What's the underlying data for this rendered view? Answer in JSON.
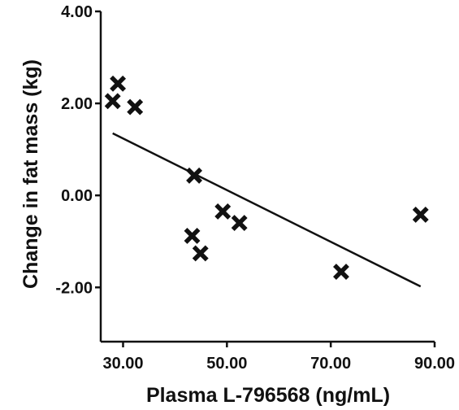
{
  "chart_data": {
    "type": "scatter",
    "title": "",
    "xlabel": "Plasma L-796568 (ng/mL)",
    "ylabel": "Change in fat mass (kg)",
    "xlim": [
      25.7,
      90.0
    ],
    "ylim": [
      -3.18,
      4.0
    ],
    "xticks": [
      30,
      50,
      70,
      90
    ],
    "yticks": [
      4,
      2,
      0,
      -2
    ],
    "xtick_labels": [
      "30.00",
      "50.00",
      "70.00",
      "90.00"
    ],
    "ytick_labels": [
      "4.00",
      "2.00",
      "0.00",
      "-2.00"
    ],
    "marker": "x",
    "grid": false,
    "legend": "none",
    "points": [
      {
        "x": 28.0,
        "y": 2.05
      },
      {
        "x": 29.0,
        "y": 2.43
      },
      {
        "x": 32.3,
        "y": 1.92
      },
      {
        "x": 43.7,
        "y": 0.43
      },
      {
        "x": 43.3,
        "y": -0.88
      },
      {
        "x": 44.9,
        "y": -1.26
      },
      {
        "x": 49.2,
        "y": -0.35
      },
      {
        "x": 52.4,
        "y": -0.6
      },
      {
        "x": 72.0,
        "y": -1.66
      },
      {
        "x": 87.3,
        "y": -0.42
      }
    ],
    "trendline": {
      "x": [
        28.0,
        87.3
      ],
      "y": [
        1.35,
        -1.98
      ]
    }
  }
}
